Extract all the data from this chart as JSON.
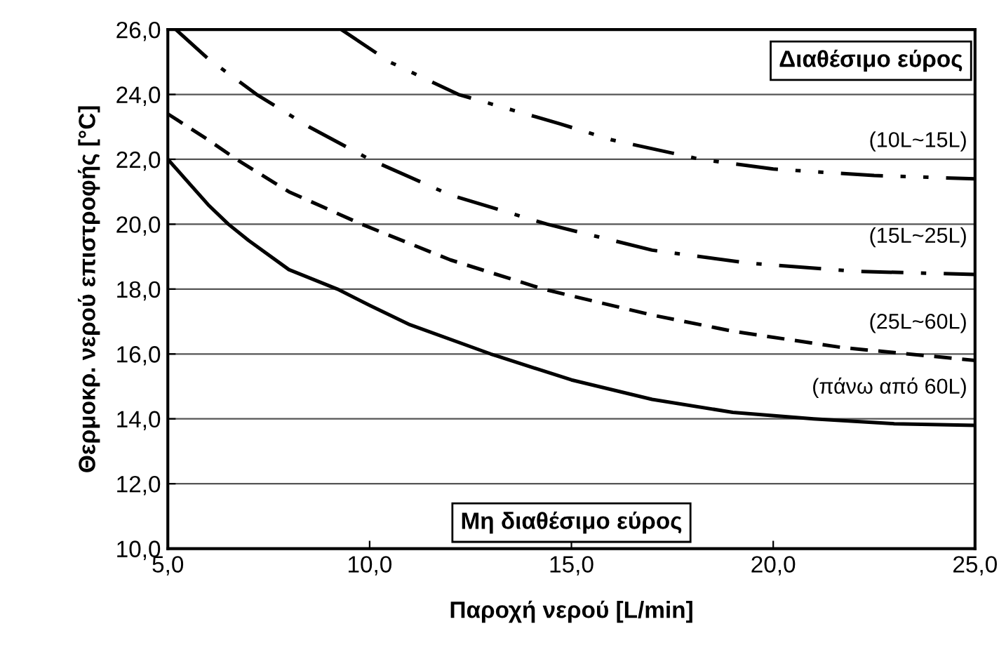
{
  "chart_data": {
    "type": "line",
    "xlabel": "Παροχή νερού [L/min]",
    "ylabel": "Θερμοκρ. νερού επιστροφής [°C]",
    "xlim": [
      5,
      25
    ],
    "ylim": [
      10,
      26
    ],
    "xticks": [
      {
        "value": 5,
        "label": "5,0"
      },
      {
        "value": 10,
        "label": "10,0"
      },
      {
        "value": 15,
        "label": "15,0"
      },
      {
        "value": 20,
        "label": "20,0"
      },
      {
        "value": 25,
        "label": "25,0"
      }
    ],
    "yticks": [
      {
        "value": 10,
        "label": "10,0"
      },
      {
        "value": 12,
        "label": "12,0"
      },
      {
        "value": 14,
        "label": "14,0"
      },
      {
        "value": 16,
        "label": "16,0"
      },
      {
        "value": 18,
        "label": "18,0"
      },
      {
        "value": 20,
        "label": "20,0"
      },
      {
        "value": 22,
        "label": "22,0"
      },
      {
        "value": 24,
        "label": "24,0"
      },
      {
        "value": 26,
        "label": "26,0"
      }
    ],
    "grid": "y",
    "legend": false,
    "marker": "none",
    "series": [
      {
        "name": "(10L~15L)",
        "color": "#000000",
        "line_style": "dashdotdot",
        "x": [
          9.3,
          10.5,
          12.2,
          14.7,
          16,
          18.2,
          20,
          22.5,
          25
        ],
        "values": [
          26,
          25,
          24,
          23.1,
          22.6,
          22,
          21.7,
          21.5,
          21.4
        ]
      },
      {
        "name": "(15L~25L)",
        "color": "#000000",
        "line_style": "dashdot",
        "x": [
          5.2,
          6,
          7.2,
          8.5,
          10,
          12,
          14.4,
          17,
          19.4,
          22,
          25
        ],
        "values": [
          26,
          25.1,
          24,
          23,
          22,
          20.9,
          20,
          19.2,
          18.8,
          18.55,
          18.45
        ]
      },
      {
        "name": "(25L~60L)",
        "color": "#000000",
        "line_style": "dashed",
        "x": [
          5,
          6,
          6.7,
          8,
          9.8,
          12,
          14.3,
          17,
          19,
          21.7,
          25
        ],
        "values": [
          23.4,
          22.6,
          22,
          21,
          20,
          18.9,
          18,
          17.2,
          16.7,
          16.2,
          15.8
        ]
      },
      {
        "name": "(πάνω από 60L)",
        "color": "#000000",
        "line_style": "solid",
        "x": [
          5,
          6,
          6.5,
          7,
          8,
          9.2,
          10,
          11,
          13,
          15,
          17,
          19,
          21,
          23,
          25
        ],
        "values": [
          22,
          20.6,
          20,
          19.5,
          18.6,
          18,
          17.5,
          16.9,
          16,
          15.2,
          14.6,
          14.2,
          14.0,
          13.85,
          13.8
        ]
      }
    ],
    "annotations": [
      "Διαθέσιμο εύρος",
      "Μη διαθέσιμο εύρος"
    ]
  }
}
